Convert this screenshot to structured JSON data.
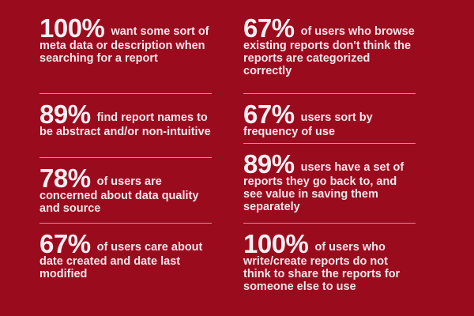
{
  "left": [
    {
      "pct": "100%",
      "text": "want some sort of meta data or description when searching for a report"
    },
    {
      "pct": "89%",
      "text": "find report names to be abstract and/or non-intuitive"
    },
    {
      "pct": "78%",
      "text": "of users are concerned about data quality and source"
    },
    {
      "pct": "67%",
      "text": "of users care about date created and date last modified"
    }
  ],
  "right": [
    {
      "pct": "67%",
      "text": "of users who browse existing reports don't think the reports are categorized correctly"
    },
    {
      "pct": "67%",
      "text": "users sort by frequency of use"
    },
    {
      "pct": "89%",
      "text": "users have a set of reports they go back to, and see value in saving them separately"
    },
    {
      "pct": "100%",
      "text": "of users who write/create reports do not think to share the reports for someone else to use"
    }
  ],
  "colors": {
    "background": "#9b0b1e",
    "text": "#f2e6e8"
  }
}
